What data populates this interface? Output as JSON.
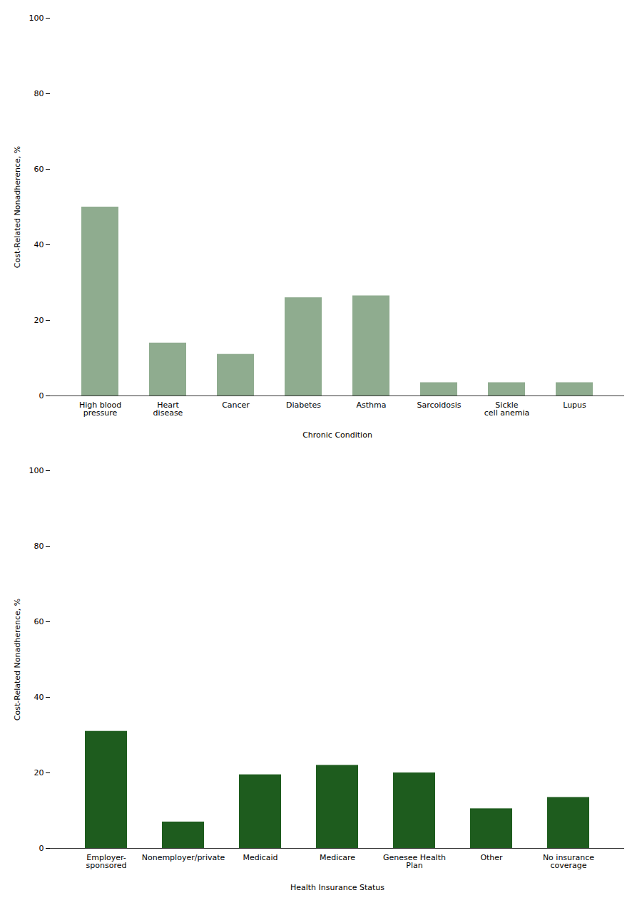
{
  "chart_data": [
    {
      "type": "bar",
      "categories": [
        "High blood\npressure",
        "Heart\ndisease",
        "Cancer",
        "Diabetes",
        "Asthma",
        "Sarcoidosis",
        "Sickle\ncell anemia",
        "Lupus"
      ],
      "values": [
        50,
        14,
        11,
        26,
        26.5,
        3.5,
        3.5,
        3.5
      ],
      "color": "#8fac8f",
      "xlabel": "Chronic Condition",
      "ylabel": "Cost-Related Nonadherence, %",
      "ylim": [
        0,
        100
      ],
      "yticks": [
        0,
        20,
        40,
        60,
        80,
        100
      ],
      "grid": false
    },
    {
      "type": "bar",
      "categories": [
        "Employer-\nsponsored",
        "Nonemployer/private",
        "Medicaid",
        "Medicare",
        "Genesee Health\nPlan",
        "Other",
        "No insurance\ncoverage"
      ],
      "values": [
        31,
        7,
        19.5,
        22,
        20,
        10.5,
        13.5
      ],
      "color": "#1e5c1e",
      "xlabel": "Health Insurance Status",
      "ylabel": "Cost-Related Nonadherence, %",
      "ylim": [
        0,
        100
      ],
      "yticks": [
        0,
        20,
        40,
        60,
        80,
        100
      ],
      "grid": false
    }
  ]
}
